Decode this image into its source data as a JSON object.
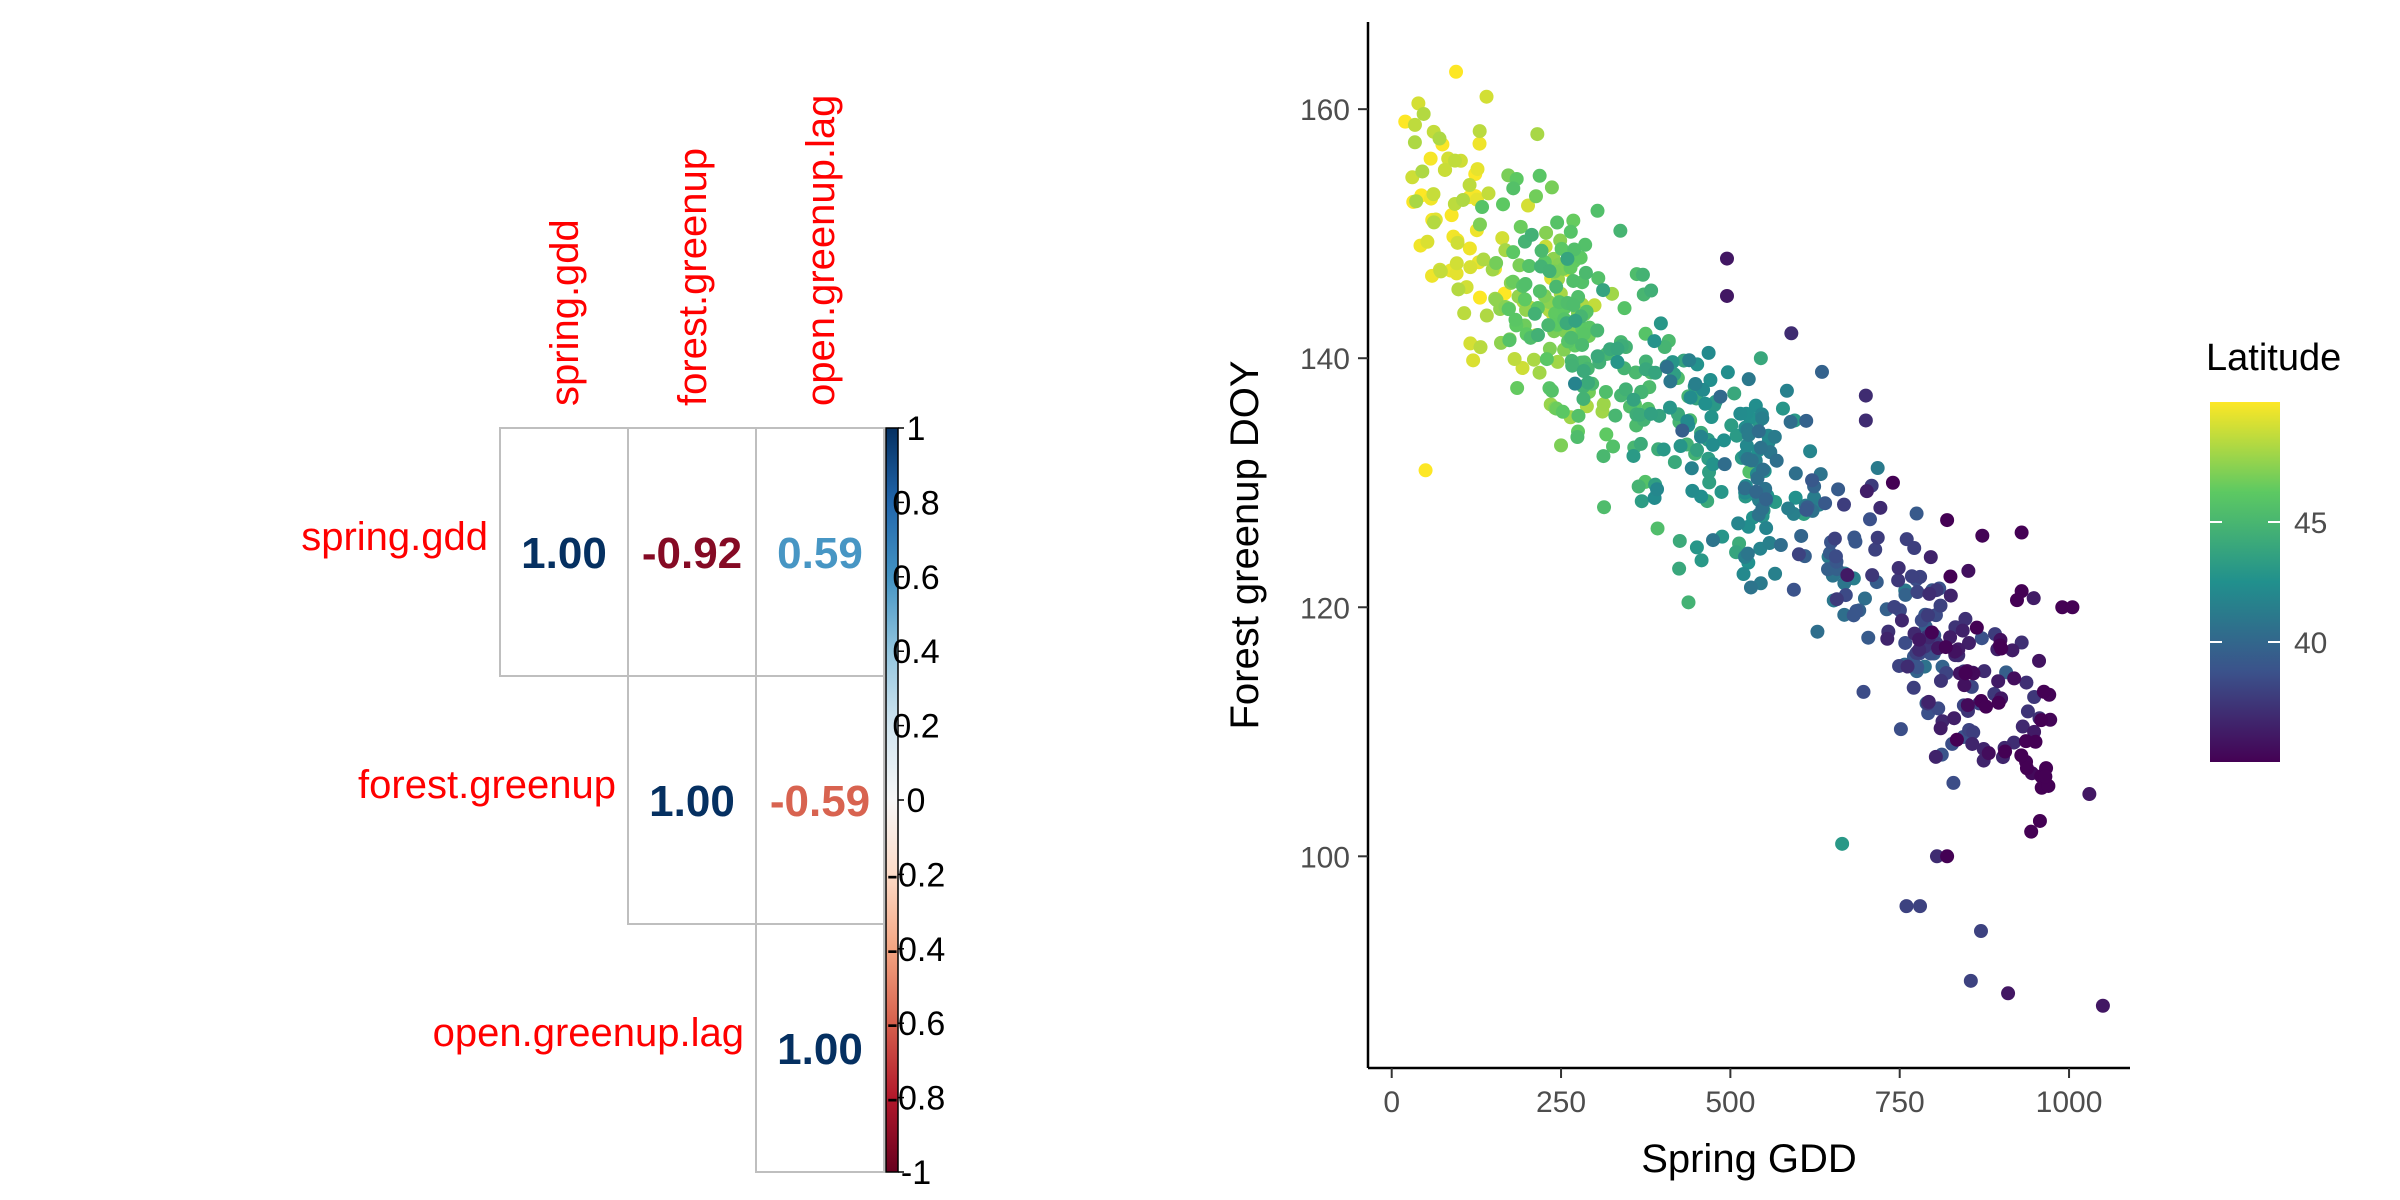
{
  "chart_data": [
    {
      "type": "heatmap",
      "variables": [
        "spring.gdd",
        "forest.greenup",
        "open.greenup.lag"
      ],
      "correlations": [
        {
          "row": "spring.gdd",
          "col": "spring.gdd",
          "value": 1.0,
          "label": "1.00"
        },
        {
          "row": "spring.gdd",
          "col": "forest.greenup",
          "value": -0.92,
          "label": "-0.92"
        },
        {
          "row": "spring.gdd",
          "col": "open.greenup.lag",
          "value": 0.59,
          "label": "0.59"
        },
        {
          "row": "forest.greenup",
          "col": "forest.greenup",
          "value": 1.0,
          "label": "1.00"
        },
        {
          "row": "forest.greenup",
          "col": "open.greenup.lag",
          "value": -0.59,
          "label": "-0.59"
        },
        {
          "row": "open.greenup.lag",
          "col": "open.greenup.lag",
          "value": 1.0,
          "label": "1.00"
        }
      ],
      "colorbar": {
        "range": [
          -1,
          1
        ],
        "ticks": [
          "-1",
          "-0.8",
          "-0.6",
          "-0.4",
          "-0.2",
          "0",
          "0.2",
          "0.4",
          "0.6",
          "0.8",
          "1"
        ],
        "palette": [
          "#67001f",
          "#b2182b",
          "#d6604d",
          "#f4a582",
          "#fddbc7",
          "#f7f7f7",
          "#d1e5f0",
          "#92c5de",
          "#4393c3",
          "#2166ac",
          "#053061"
        ]
      },
      "label_color": "#ff0000",
      "layout": "upper-triangle"
    },
    {
      "type": "scatter",
      "xlabel": "Spring GDD",
      "ylabel": "Forest greenup DOY",
      "xlim": [
        -35,
        1090
      ],
      "ylim": [
        83,
        167
      ],
      "xticks": [
        "0",
        "250",
        "500",
        "750",
        "1000"
      ],
      "yticks": [
        "100",
        "120",
        "140",
        "160"
      ],
      "color_legend": {
        "title": "Latitude",
        "range": [
          35,
          50
        ],
        "ticks": [
          "40",
          "45"
        ],
        "palette": [
          "#440154",
          "#3b528b",
          "#21908d",
          "#5dc962",
          "#fde725"
        ]
      },
      "points_lat_range": [
        35,
        50
      ],
      "points_model": "forest greenup DOY ≈ 155 − 0.047·GDD, latitude decreasing with GDD",
      "points_count": 620,
      "points_anchors": [
        {
          "x": 20,
          "y": 159,
          "lat": 50
        },
        {
          "x": 50,
          "y": 131,
          "lat": 50
        },
        {
          "x": 95,
          "y": 163,
          "lat": 50
        },
        {
          "x": 140,
          "y": 161,
          "lat": 49
        },
        {
          "x": 215,
          "y": 158,
          "lat": 48
        },
        {
          "x": 250,
          "y": 133,
          "lat": 47
        },
        {
          "x": 495,
          "y": 148,
          "lat": 36
        },
        {
          "x": 495,
          "y": 145,
          "lat": 36
        },
        {
          "x": 545,
          "y": 140,
          "lat": 44
        },
        {
          "x": 595,
          "y": 135,
          "lat": 43
        },
        {
          "x": 590,
          "y": 142,
          "lat": 37
        },
        {
          "x": 700,
          "y": 137,
          "lat": 37
        },
        {
          "x": 700,
          "y": 135,
          "lat": 37
        },
        {
          "x": 665,
          "y": 101,
          "lat": 43
        },
        {
          "x": 805,
          "y": 100,
          "lat": 37
        },
        {
          "x": 820,
          "y": 100,
          "lat": 35
        },
        {
          "x": 760,
          "y": 96,
          "lat": 38
        },
        {
          "x": 780,
          "y": 96,
          "lat": 38
        },
        {
          "x": 870,
          "y": 94,
          "lat": 38
        },
        {
          "x": 855,
          "y": 90,
          "lat": 38
        },
        {
          "x": 910,
          "y": 89,
          "lat": 36
        },
        {
          "x": 1050,
          "y": 88,
          "lat": 36
        },
        {
          "x": 1030,
          "y": 105,
          "lat": 36
        },
        {
          "x": 990,
          "y": 120,
          "lat": 35
        },
        {
          "x": 1005,
          "y": 120,
          "lat": 35
        },
        {
          "x": 930,
          "y": 126,
          "lat": 35
        },
        {
          "x": 820,
          "y": 127,
          "lat": 35
        },
        {
          "x": 740,
          "y": 130,
          "lat": 35
        }
      ]
    }
  ]
}
